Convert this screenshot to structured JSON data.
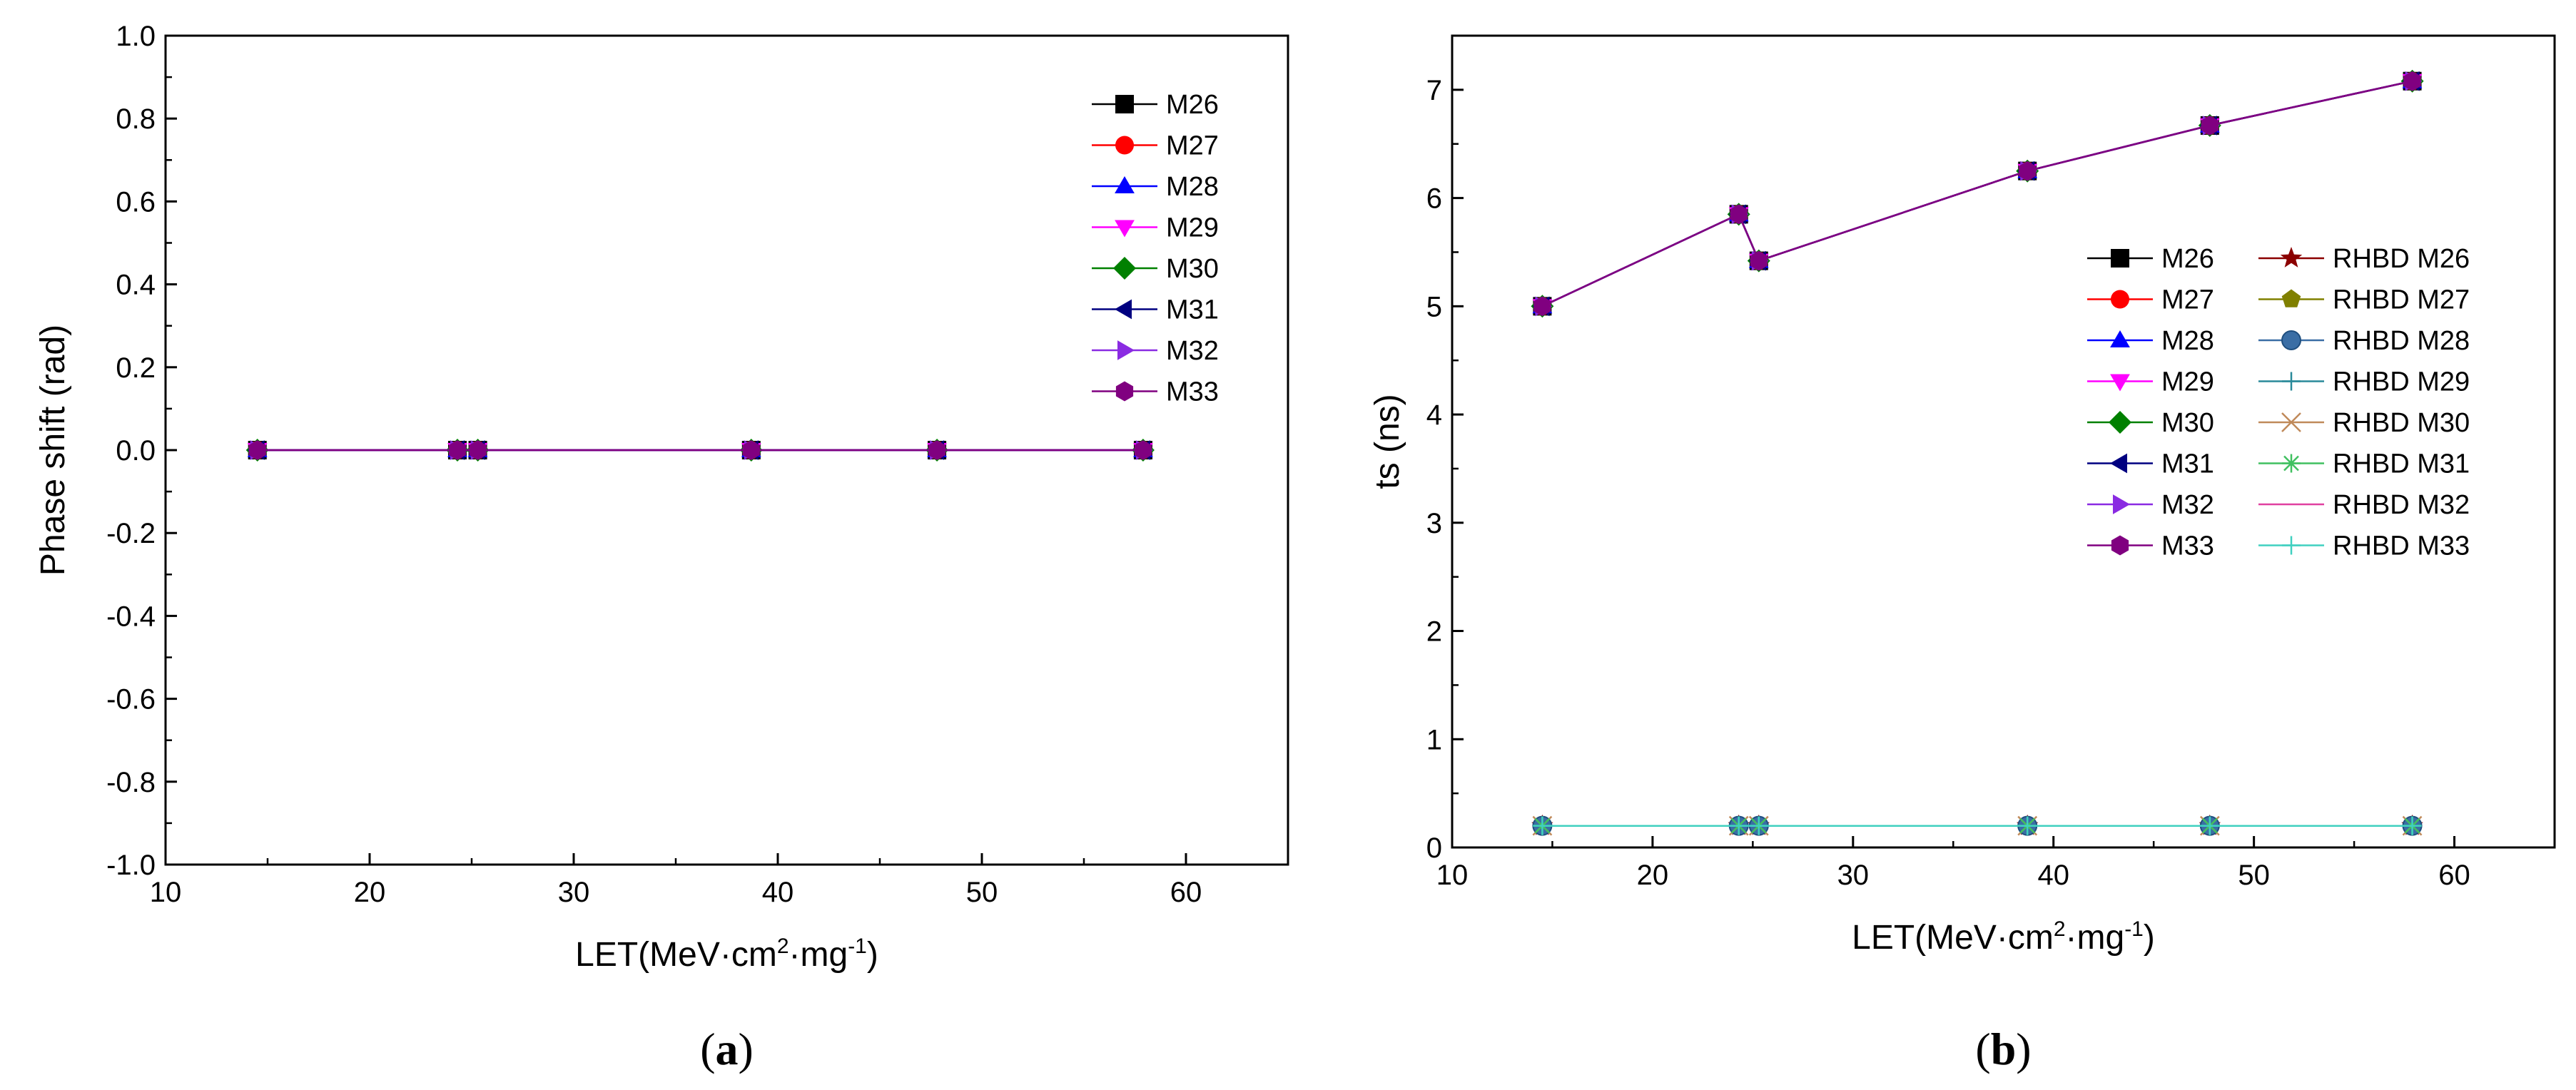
{
  "chart_data": [
    {
      "type": "line",
      "panel_label": "a",
      "xlabel": "LET(MeV·cm²·mg⁻¹)",
      "ylabel": "Phase shift (rad)",
      "xlim": [
        10,
        65
      ],
      "ylim": [
        -1.0,
        1.0
      ],
      "xticks": [
        "10",
        "20",
        "30",
        "40",
        "50",
        "60"
      ],
      "yticks": [
        "-1.0",
        "-0.8",
        "-0.6",
        "-0.4",
        "-0.2",
        "0.0",
        "0.2",
        "0.4",
        "0.6",
        "0.8",
        "1.0"
      ],
      "legend_position": "top-right",
      "x": [
        14.5,
        24.3,
        25.3,
        38.7,
        47.8,
        57.9
      ],
      "series": [
        {
          "name": "M26",
          "color": "#000000",
          "marker": "square",
          "values": [
            0,
            0,
            0,
            0,
            0,
            0
          ]
        },
        {
          "name": "M27",
          "color": "#ff0000",
          "marker": "circle",
          "values": [
            0,
            0,
            0,
            0,
            0,
            0
          ]
        },
        {
          "name": "M28",
          "color": "#0000ff",
          "marker": "triangle-up",
          "values": [
            0,
            0,
            0,
            0,
            0,
            0
          ]
        },
        {
          "name": "M29",
          "color": "#ff00ff",
          "marker": "triangle-down",
          "values": [
            0,
            0,
            0,
            0,
            0,
            0
          ]
        },
        {
          "name": "M30",
          "color": "#008000",
          "marker": "diamond",
          "values": [
            0,
            0,
            0,
            0,
            0,
            0
          ]
        },
        {
          "name": "M31",
          "color": "#000080",
          "marker": "triangle-left",
          "values": [
            0,
            0,
            0,
            0,
            0,
            0
          ]
        },
        {
          "name": "M32",
          "color": "#8a2be2",
          "marker": "triangle-right",
          "values": [
            0,
            0,
            0,
            0,
            0,
            0
          ]
        },
        {
          "name": "M33",
          "color": "#800080",
          "marker": "hexagon",
          "values": [
            0,
            0,
            0,
            0,
            0,
            0
          ]
        }
      ]
    },
    {
      "type": "line",
      "panel_label": "b",
      "xlabel": "LET(MeV·cm²·mg⁻¹)",
      "ylabel": "ts (ns)",
      "xlim": [
        10,
        65
      ],
      "ylim": [
        0,
        7.5
      ],
      "xticks": [
        "10",
        "20",
        "30",
        "40",
        "50",
        "60"
      ],
      "yticks": [
        "0",
        "1",
        "2",
        "3",
        "4",
        "5",
        "6",
        "7"
      ],
      "legend_position": "right",
      "x": [
        14.5,
        24.3,
        25.3,
        38.7,
        47.8,
        57.9
      ],
      "series": [
        {
          "name": "M26",
          "color": "#000000",
          "marker": "square",
          "values": [
            5.0,
            5.85,
            5.42,
            6.25,
            6.67,
            7.08
          ]
        },
        {
          "name": "M27",
          "color": "#ff0000",
          "marker": "circle",
          "values": [
            5.0,
            5.85,
            5.42,
            6.25,
            6.67,
            7.08
          ]
        },
        {
          "name": "M28",
          "color": "#0000ff",
          "marker": "triangle-up",
          "values": [
            5.0,
            5.85,
            5.42,
            6.25,
            6.67,
            7.08
          ]
        },
        {
          "name": "M29",
          "color": "#ff00ff",
          "marker": "triangle-down",
          "values": [
            5.0,
            5.85,
            5.42,
            6.25,
            6.67,
            7.08
          ]
        },
        {
          "name": "M30",
          "color": "#008000",
          "marker": "diamond",
          "values": [
            5.0,
            5.85,
            5.42,
            6.25,
            6.67,
            7.08
          ]
        },
        {
          "name": "M31",
          "color": "#000080",
          "marker": "triangle-left",
          "values": [
            5.0,
            5.85,
            5.42,
            6.25,
            6.67,
            7.08
          ]
        },
        {
          "name": "M32",
          "color": "#8a2be2",
          "marker": "triangle-right",
          "values": [
            5.0,
            5.85,
            5.42,
            6.25,
            6.67,
            7.08
          ]
        },
        {
          "name": "M33",
          "color": "#800080",
          "marker": "hexagon",
          "values": [
            5.0,
            5.85,
            5.42,
            6.25,
            6.67,
            7.08
          ]
        },
        {
          "name": "RHBD M26",
          "color": "#8b0000",
          "marker": "star",
          "values": [
            0.2,
            0.2,
            0.2,
            0.2,
            0.2,
            0.2
          ]
        },
        {
          "name": "RHBD M27",
          "color": "#808000",
          "marker": "pentagon",
          "values": [
            0.2,
            0.2,
            0.2,
            0.2,
            0.2,
            0.2
          ]
        },
        {
          "name": "RHBD M28",
          "color": "#3a6ea5",
          "marker": "sphere",
          "values": [
            0.2,
            0.2,
            0.2,
            0.2,
            0.2,
            0.2
          ]
        },
        {
          "name": "RHBD M29",
          "color": "#2a8a9a",
          "marker": "plus",
          "values": [
            0.2,
            0.2,
            0.2,
            0.2,
            0.2,
            0.2
          ]
        },
        {
          "name": "RHBD M30",
          "color": "#c08a5a",
          "marker": "x",
          "values": [
            0.2,
            0.2,
            0.2,
            0.2,
            0.2,
            0.2
          ]
        },
        {
          "name": "RHBD M31",
          "color": "#40c060",
          "marker": "asterisk",
          "values": [
            0.2,
            0.2,
            0.2,
            0.2,
            0.2,
            0.2
          ]
        },
        {
          "name": "RHBD M32",
          "color": "#e040a0",
          "marker": "none",
          "values": [
            0.2,
            0.2,
            0.2,
            0.2,
            0.2,
            0.2
          ]
        },
        {
          "name": "RHBD M33",
          "color": "#40d0c0",
          "marker": "plus",
          "values": [
            0.2,
            0.2,
            0.2,
            0.2,
            0.2,
            0.2
          ]
        }
      ]
    }
  ]
}
